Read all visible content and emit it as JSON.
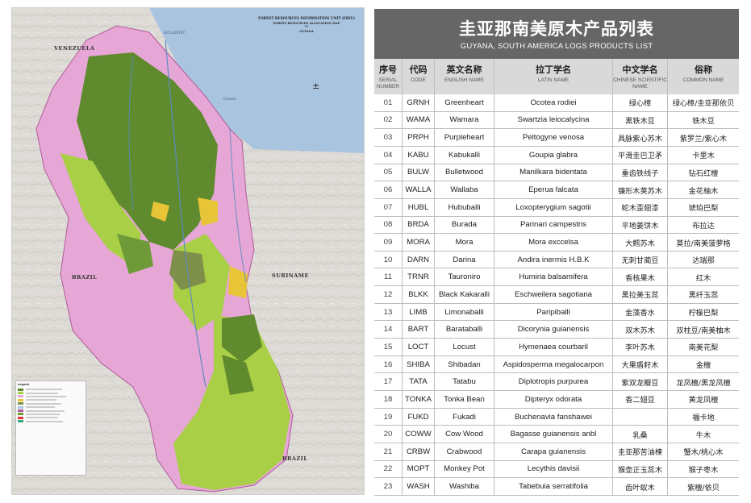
{
  "map": {
    "header_title": "FOREST RESOURCES INFORMATION UNIT (FRIU)",
    "header_subtitle": "FOREST RESOURCES ALLOCATION MAP",
    "header_of": "OF",
    "header_country": "GUYANA",
    "labels": {
      "venezuela": "VENEZUELA",
      "brazil_mid": "BRAZIL",
      "brazil_south": "BRAZIL",
      "suriname": "SURINAME",
      "atlantic": "ATLANTIC",
      "ocean": "Ocean"
    },
    "legend_title": "Legend",
    "colors": {
      "dark_green": "#5f8a2e",
      "light_green": "#a8cf45",
      "pink": "#e6a7d6",
      "yellow": "#e8c437",
      "olive": "#7e8f4a",
      "sea": "#a9c4df",
      "relief": "#dcd9d4"
    }
  },
  "table": {
    "title_cn": "圭亚那南美原木产品列表",
    "title_en": "GUYANA, SOUTH AMERICA LOGS PRODUCTS LIST",
    "headers": [
      {
        "cn": "序号",
        "en": "SERIAL NUMBER"
      },
      {
        "cn": "代码",
        "en": "CODE"
      },
      {
        "cn": "英文名称",
        "en": "ENGLISH NAME"
      },
      {
        "cn": "拉丁学名",
        "en": "LATIN NAME"
      },
      {
        "cn": "中文学名",
        "en": "CHINESE SCIENTIFIC NAME"
      },
      {
        "cn": "俗称",
        "en": "COMMON NAME"
      }
    ],
    "rows": [
      [
        "01",
        "GRNH",
        "Greenheart",
        "Ocotea rodiei",
        "绿心樟",
        "绿心樟/圭亚那依贝"
      ],
      [
        "02",
        "WAMA",
        "Wamara",
        "Swartzia leiocalycina",
        "黑铁木豆",
        "铁木豆"
      ],
      [
        "03",
        "PRPH",
        "Purpleheart",
        "Peltogyne venosa",
        "具脉紫心苏木",
        "紫罗兰/紫心木"
      ],
      [
        "04",
        "KABU",
        "Kabukalli",
        "Goupia glabra",
        "平滑圭巴卫矛",
        "卡里木"
      ],
      [
        "05",
        "BULW",
        "Bulletwood",
        "Manilkara bidentata",
        "重齿铁线子",
        "钻石红檀"
      ],
      [
        "06",
        "WALLA",
        "Wallaba",
        "Eperua falcata",
        "镰形木荚苏木",
        "金花柚木"
      ],
      [
        "07",
        "HUBL",
        "Hububalli",
        "Loxopterygium sagotii",
        "蛇木歪翅漆",
        "琥珀巴梨"
      ],
      [
        "08",
        "BRDA",
        "Burada",
        "Parinari campestris",
        "平地姜饼木",
        "布拉达"
      ],
      [
        "09",
        "MORA",
        "Mora",
        "Mora exccelsa",
        "大鳕苏木",
        "莫拉/南美菠萝格"
      ],
      [
        "10",
        "DARN",
        "Darina",
        "Andira inermis H.B.K",
        "无刺甘蔺豆",
        "达瑞那"
      ],
      [
        "11",
        "TRNR",
        "Tauroniro",
        "Humiria balsamifera",
        "香核果木",
        "红木"
      ],
      [
        "12",
        "BLKK",
        "Black Kakaralli",
        "Eschweilera sagotiana",
        "黑拉美玉蕊",
        "黑纤玉蕊"
      ],
      [
        "13",
        "LIMB",
        "Limonaballi",
        "Paripiballi",
        "金藻香水",
        "柠檬巴梨"
      ],
      [
        "14",
        "BART",
        "Barataballi",
        "Dicorynia guianensis",
        "双木苏木",
        "双柱豆/南美柚木"
      ],
      [
        "15",
        "LOCT",
        "Locust",
        "Hymenaea courbaril",
        "李叶苏木",
        "南美花梨"
      ],
      [
        "16",
        "SHIBA",
        "Shibadan",
        "Aspidosperma megalocarpon",
        "大果盾籽木",
        "金檀"
      ],
      [
        "17",
        "TATA",
        "Tatabu",
        "Diplotropis purpurea",
        "紫双龙瓣豆",
        "龙凤檀/黑龙凤檀"
      ],
      [
        "18",
        "TONKA",
        "Tonka Bean",
        "Dipteryx odorata",
        "香二翅豆",
        "黄龙凤檀"
      ],
      [
        "19",
        "FUKD",
        "Fukadi",
        "Buchenavia fanshawei",
        "",
        "福卡地"
      ],
      [
        "20",
        "COWW",
        "Cow Wood",
        "Bagasse guianensis anbl",
        "乳桑",
        "牛木"
      ],
      [
        "21",
        "CRBW",
        "Crabwood",
        "Carapa guianensis",
        "圭亚那苦油楝",
        "蟹木/桃心木"
      ],
      [
        "22",
        "MOPT",
        "Monkey Pot",
        "Lecythis davisii",
        "猴壶正玉蕊木",
        "猴子枣木"
      ],
      [
        "23",
        "WASH",
        "Washiba",
        "Tabebuia serratifolia",
        "齿叶蚁木",
        "紫檀/依贝"
      ]
    ]
  }
}
